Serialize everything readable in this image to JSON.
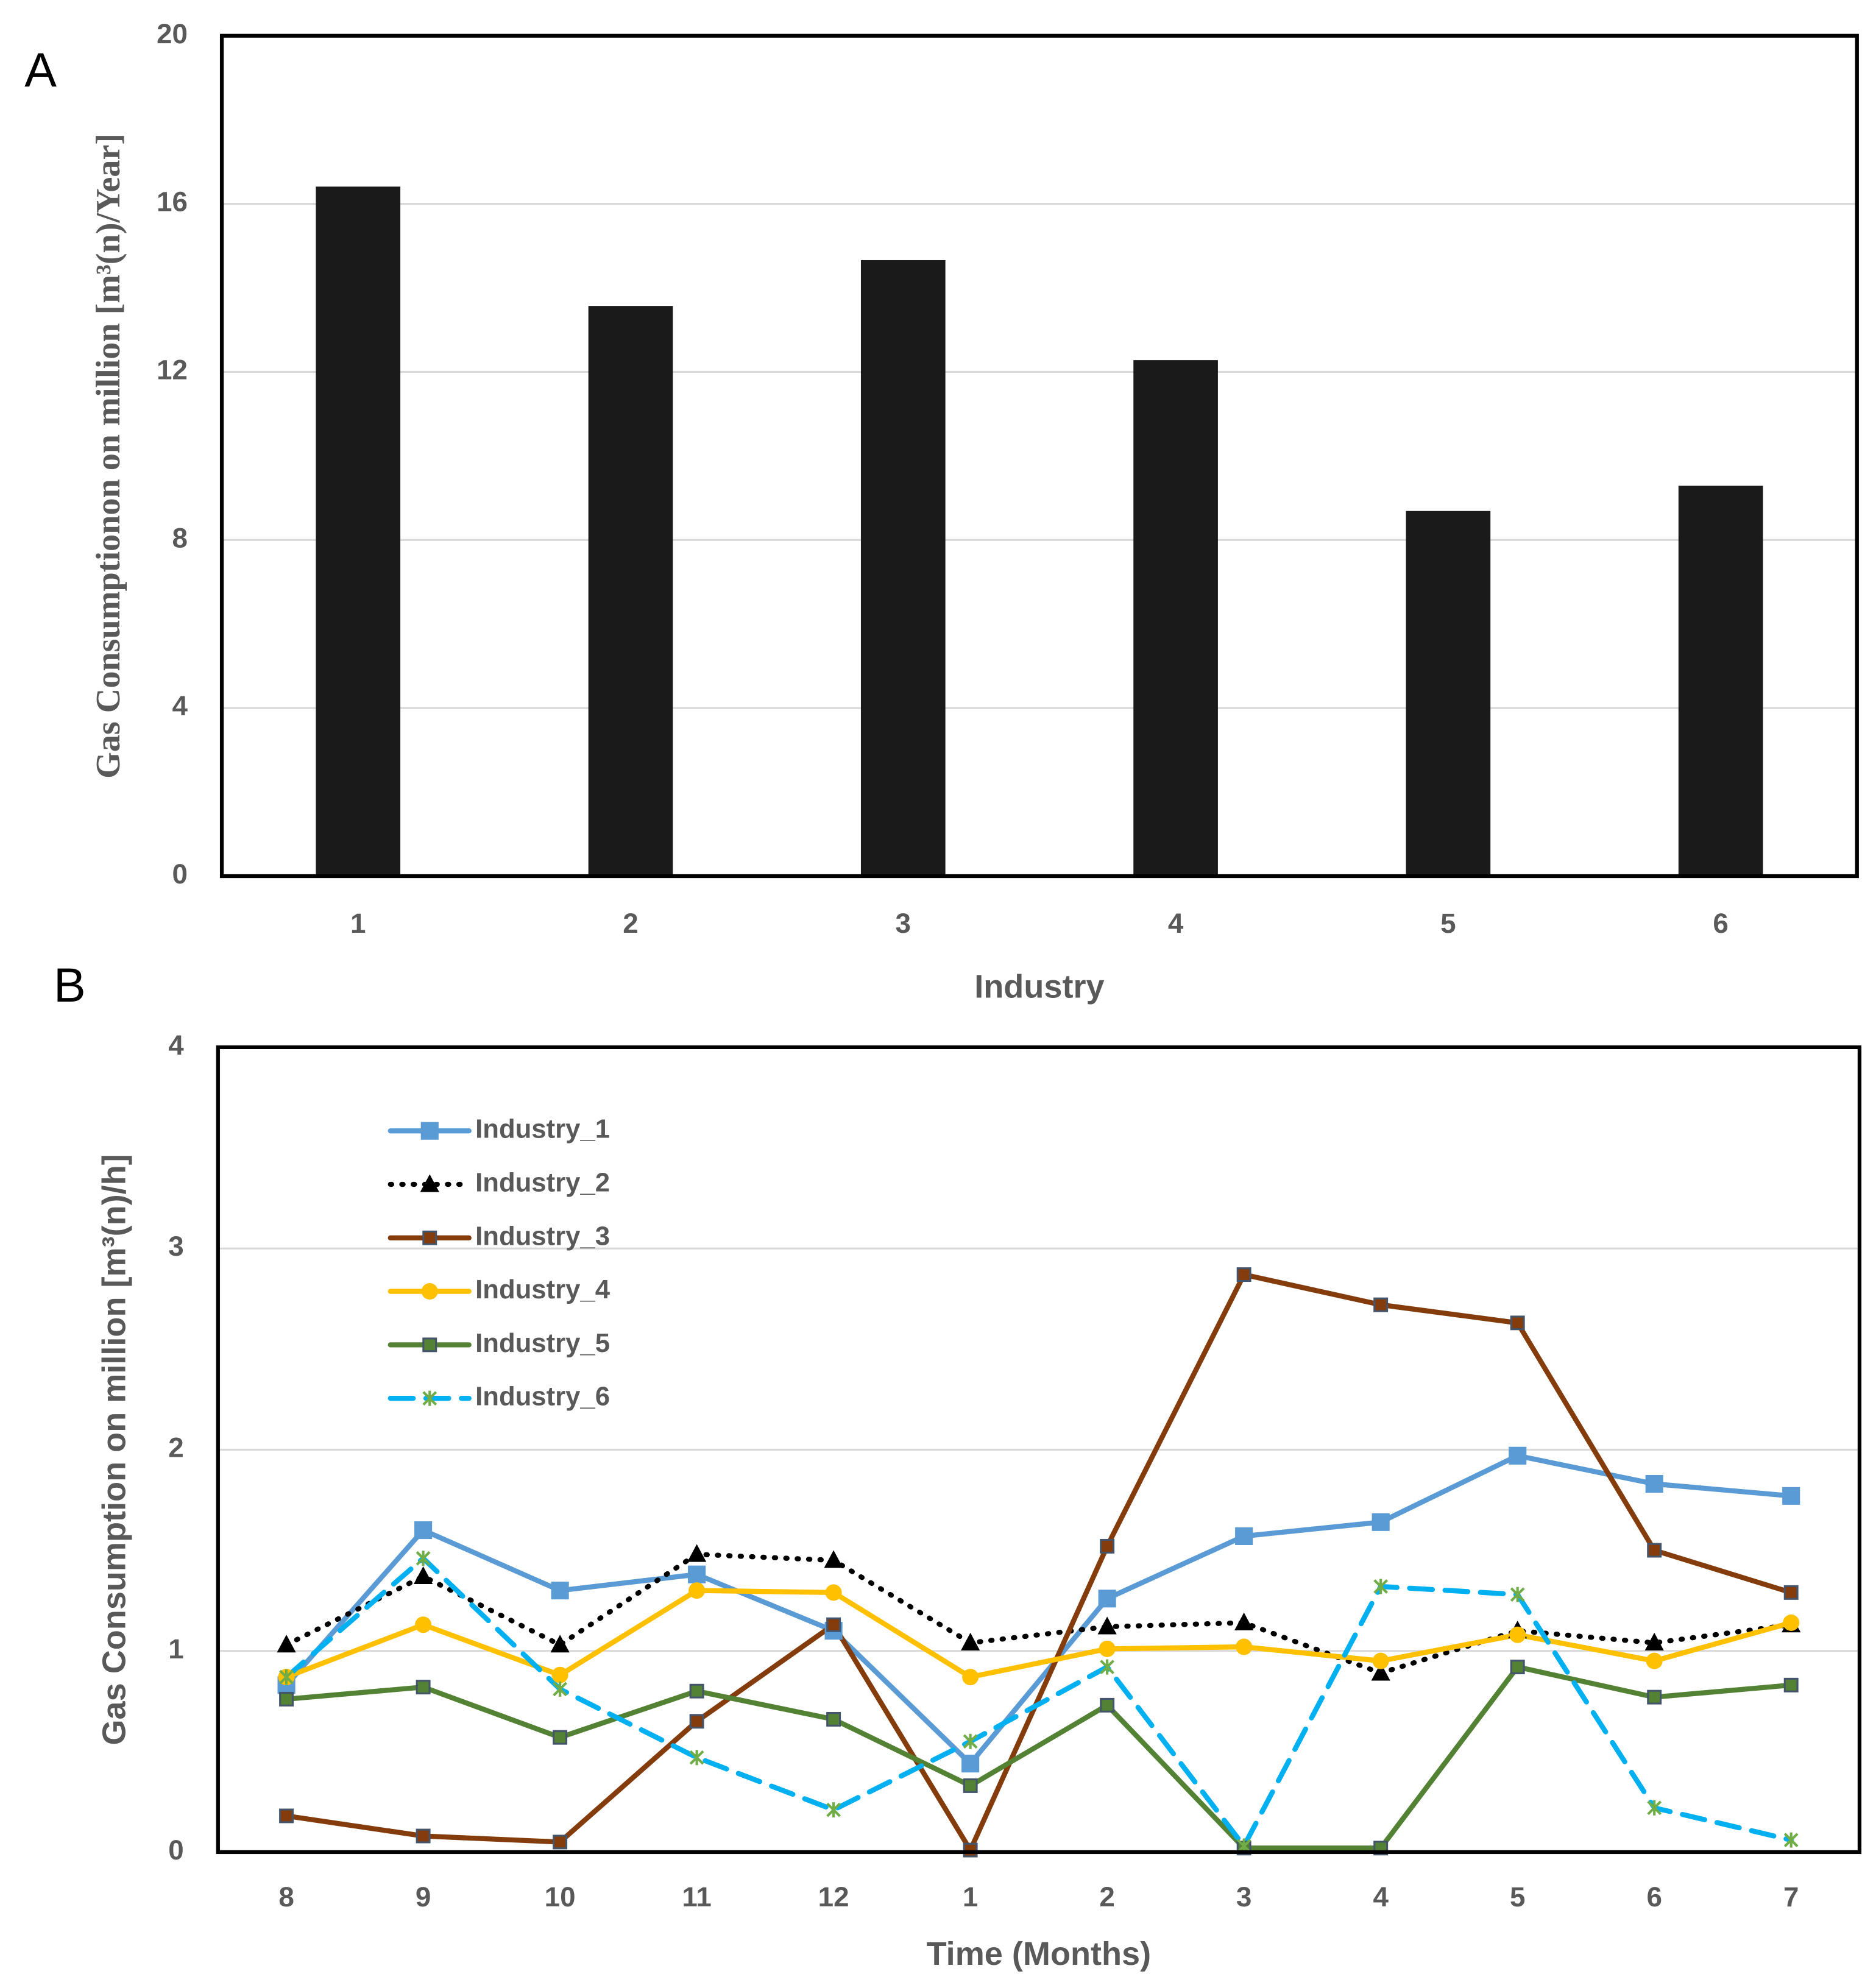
{
  "chart_data": [
    {
      "type": "bar",
      "label": "A",
      "categories": [
        "1",
        "2",
        "3",
        "4",
        "5",
        "6"
      ],
      "values": [
        16.41,
        13.57,
        14.66,
        12.28,
        8.69,
        9.29
      ],
      "color": "#1a1a1a",
      "ylim": [
        0,
        20
      ],
      "yticks": [
        0,
        4,
        8,
        12,
        16,
        20
      ],
      "grid": true,
      "y_label": "Gas Consumptionon on million  [m³(n)/Year]",
      "x_label": "Industry"
    },
    {
      "type": "line",
      "label": "B",
      "categories": [
        "8",
        "9",
        "10",
        "11",
        "12",
        "1",
        "2",
        "3",
        "4",
        "5",
        "6",
        "7"
      ],
      "series": [
        {
          "name": "Industry_1",
          "color": "#5b9bd5",
          "marker": "square",
          "dash": "solid",
          "values": [
            0.83,
            1.6,
            1.3,
            1.38,
            1.1,
            0.44,
            1.26,
            1.57,
            1.64,
            1.97,
            1.83,
            1.77
          ]
        },
        {
          "name": "Industry_2",
          "color": "#000000",
          "marker": "triangle",
          "dash": "dotted",
          "values": [
            1.03,
            1.37,
            1.03,
            1.48,
            1.45,
            1.04,
            1.12,
            1.14,
            0.89,
            1.1,
            1.04,
            1.13
          ]
        },
        {
          "name": "Industry_3",
          "color": "#843c0c",
          "marker": "small-square",
          "dash": "solid",
          "values": [
            0.18,
            0.08,
            0.05,
            0.65,
            1.13,
            0.01,
            1.52,
            2.87,
            2.72,
            2.63,
            1.5,
            1.29
          ]
        },
        {
          "name": "Industry_4",
          "color": "#ffc000",
          "marker": "circle",
          "dash": "solid",
          "values": [
            0.87,
            1.13,
            0.88,
            1.3,
            1.29,
            0.87,
            1.01,
            1.02,
            0.95,
            1.08,
            0.95,
            1.14
          ]
        },
        {
          "name": "Industry_5",
          "color": "#548235",
          "marker": "small-square",
          "dash": "solid",
          "values": [
            0.76,
            0.82,
            0.57,
            0.8,
            0.66,
            0.33,
            0.73,
            0.02,
            0.02,
            0.92,
            0.77,
            0.83
          ]
        },
        {
          "name": "Industry_6",
          "color": "#00b0f0",
          "marker": "star",
          "dash": "dashed",
          "values": [
            0.87,
            1.46,
            0.81,
            0.47,
            0.21,
            0.55,
            0.92,
            0.03,
            1.32,
            1.28,
            0.22,
            0.06
          ]
        }
      ],
      "ylim": [
        0,
        4
      ],
      "yticks": [
        0,
        1,
        2,
        3,
        4
      ],
      "grid": true,
      "legend": "upper left",
      "y_label": "Gas Consumption on million [m³(n)/h]",
      "x_label": "Time (Months)"
    }
  ]
}
